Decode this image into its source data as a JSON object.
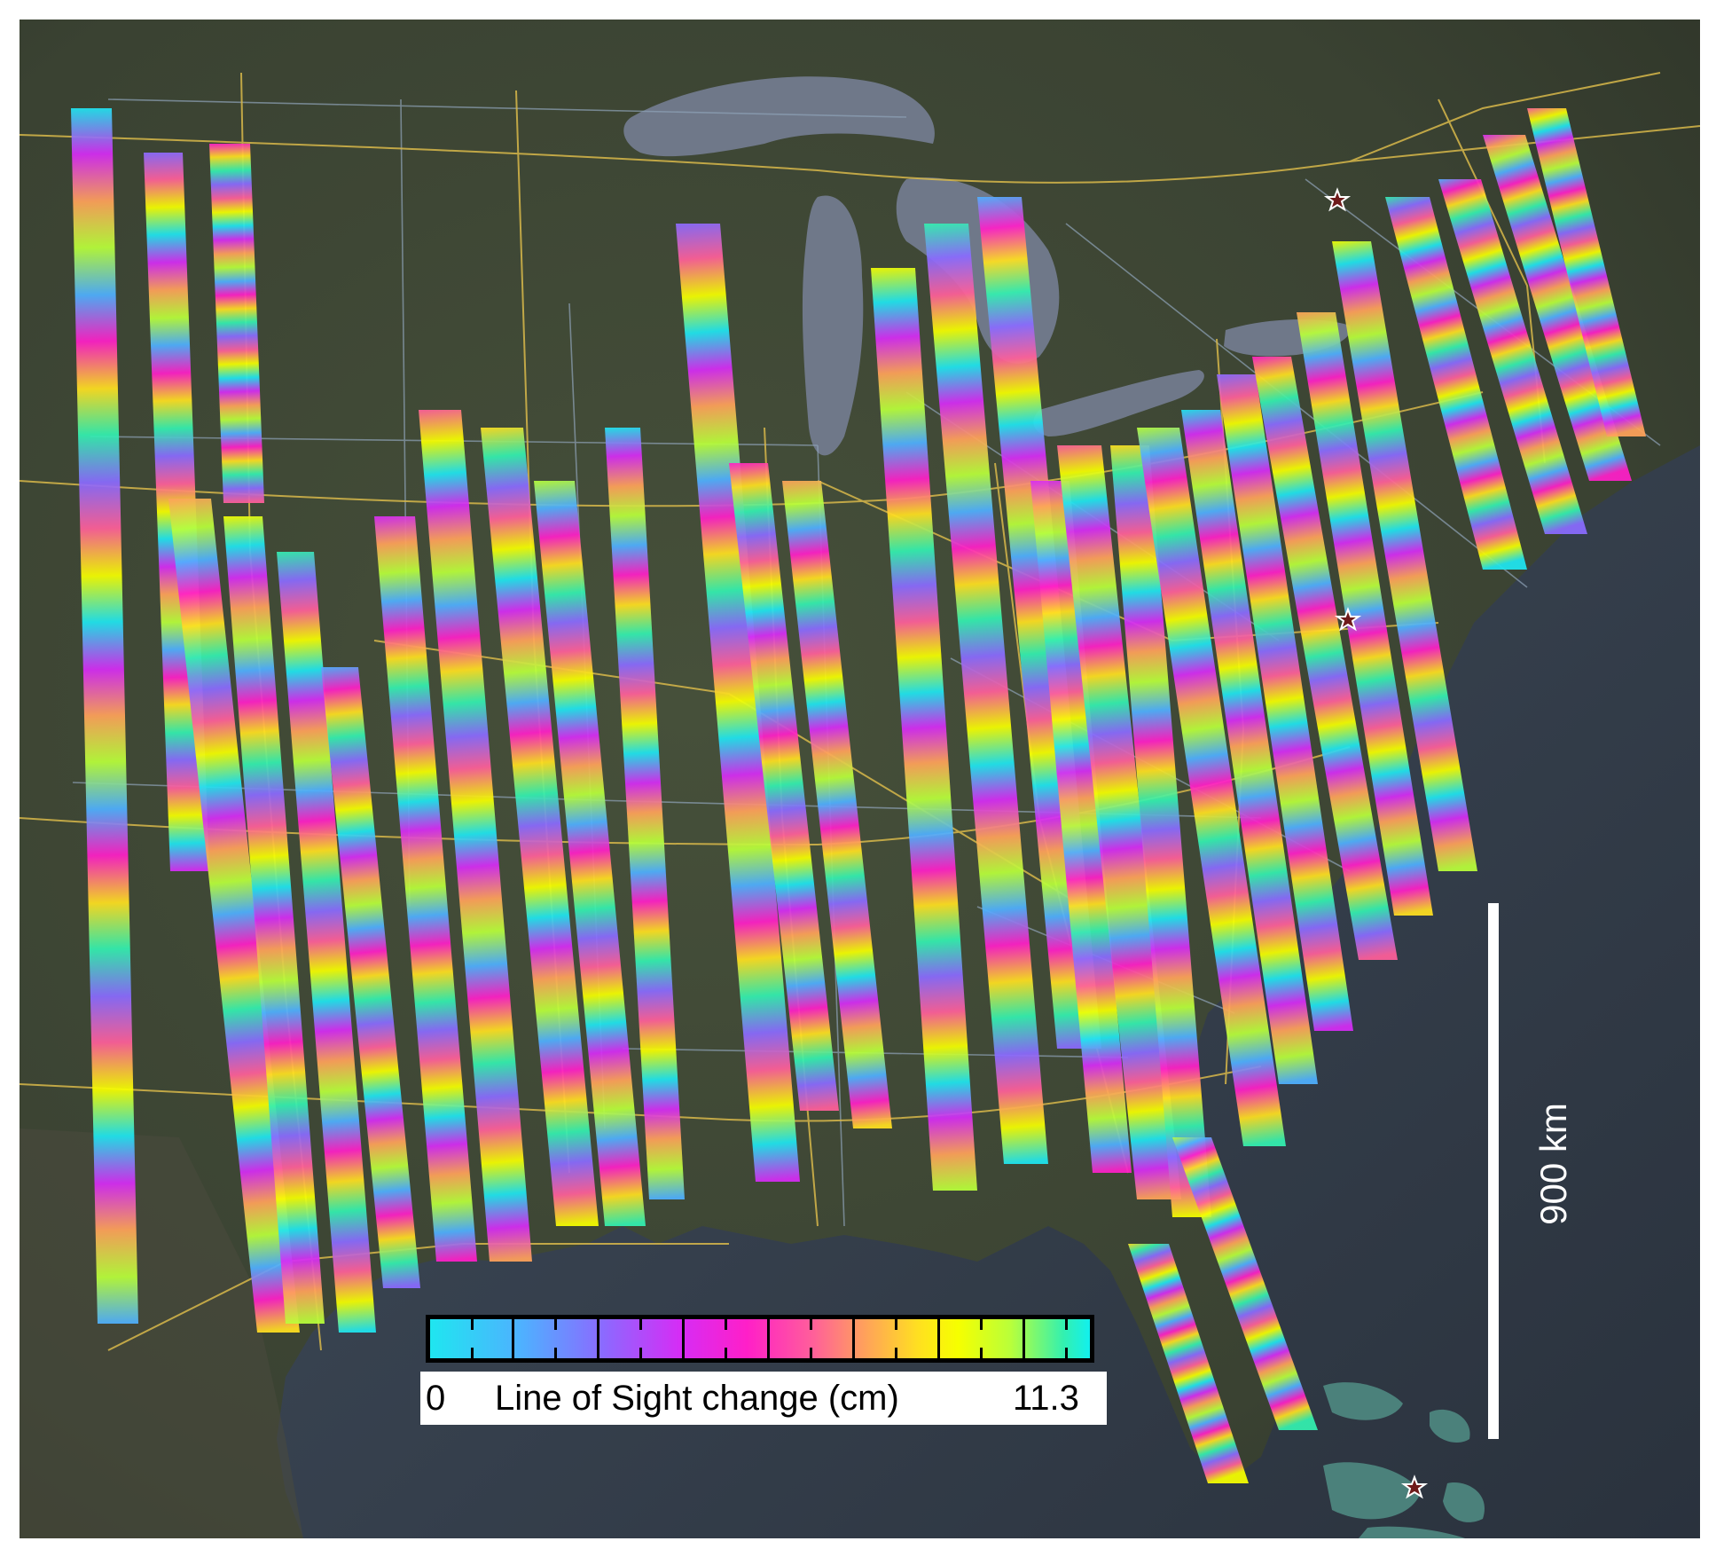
{
  "map": {
    "background_colors": {
      "land": "#3d4535",
      "land_dark": "#2f3529",
      "ocean": "#3e4958",
      "lake": "#6f7889",
      "roads": "#d8b84a",
      "borders": "#8fa3b8"
    },
    "markers": [
      {
        "icon": "star-marker-icon",
        "color": "#6e1a1a"
      },
      {
        "icon": "star-marker-icon",
        "color": "#6e1a1a"
      },
      {
        "icon": "star-marker-icon",
        "color": "#6e1a1a"
      }
    ],
    "interferogram_palette": [
      "#1fe6f0",
      "#4fb0ff",
      "#8a6bff",
      "#d62cf5",
      "#ff1fc8",
      "#ff5f9a",
      "#ffa25a",
      "#ffe020",
      "#f6ff00",
      "#b9ff3a",
      "#33f0b0"
    ]
  },
  "legend": {
    "min_label": "0",
    "title": "Line of Sight change (cm)",
    "max_label": "11.3",
    "range": [
      0,
      11.3
    ],
    "colormap": [
      "#1fe6f0",
      "#4fb0ff",
      "#8a6bff",
      "#d62cf5",
      "#ff1fc8",
      "#ff5f9a",
      "#ffa25a",
      "#ffe020",
      "#f6ff00",
      "#b9ff3a",
      "#33f0b0",
      "#12f0ee"
    ]
  },
  "scale_bar": {
    "label": "900 km",
    "color": "#ffffff"
  }
}
